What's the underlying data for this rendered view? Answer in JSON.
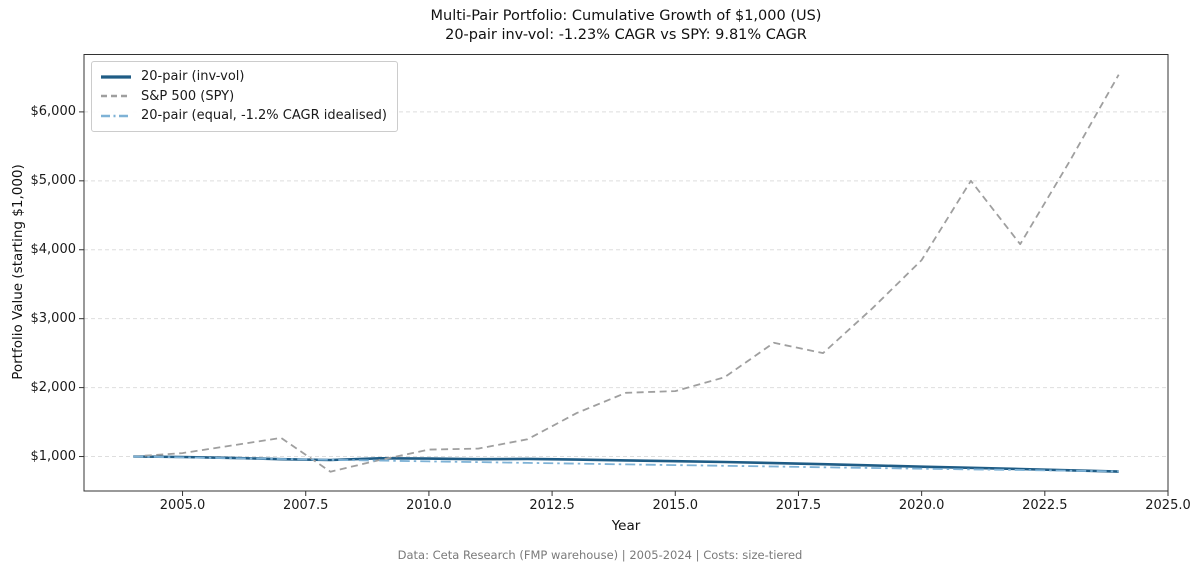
{
  "header": {
    "title_line1": "Multi-Pair Portfolio: Cumulative Growth of $1,000 (US)",
    "title_line2": "20-pair inv-vol: -1.23% CAGR vs SPY: 9.81% CAGR"
  },
  "footer": {
    "caption": "Data: Ceta Research (FMP warehouse) | 2005-2024 | Costs: size-tiered"
  },
  "colors": {
    "invvol_line": "#1f5c85",
    "spy_line": "#9f9f9f",
    "equal_line": "#7eb2d6",
    "gridline": "#dedede",
    "axis_frame": "#333333"
  },
  "chart_data": {
    "type": "line",
    "title": "Multi-Pair Portfolio: Cumulative Growth of $1,000 (US)",
    "subtitle": "20-pair inv-vol: -1.23% CAGR vs SPY: 9.81% CAGR",
    "xlabel": "Year",
    "ylabel": "Portfolio Value (starting $1,000)",
    "xlim": [
      2003,
      2025
    ],
    "ylim": [
      500,
      6840
    ],
    "grid": "horizontal dashed gridlines on",
    "legend_position": "upper-left",
    "xtick_values": [
      2005.0,
      2007.5,
      2010.0,
      2012.5,
      2015.0,
      2017.5,
      2020.0,
      2022.5,
      2025.0
    ],
    "xtick_labels": [
      "2005.0",
      "2007.5",
      "2010.0",
      "2012.5",
      "2015.0",
      "2017.5",
      "2020.0",
      "2022.5",
      "2025.0"
    ],
    "ytick_values": [
      1000,
      2000,
      3000,
      4000,
      5000,
      6000
    ],
    "ytick_labels": [
      "$1,000",
      "$2,000",
      "$3,000",
      "$4,000",
      "$5,000",
      "$6,000"
    ],
    "x": [
      2004,
      2005,
      2006,
      2007,
      2008,
      2009,
      2010,
      2011,
      2012,
      2013,
      2014,
      2015,
      2016,
      2017,
      2018,
      2019,
      2020,
      2021,
      2022,
      2023,
      2024
    ],
    "series": [
      {
        "name": "20-pair (inv-vol)",
        "color": "#1f5c85",
        "style": "solid",
        "width": 2.6,
        "values": [
          1000,
          993,
          980,
          962,
          950,
          975,
          970,
          962,
          966,
          955,
          944,
          933,
          921,
          905,
          889,
          871,
          853,
          836,
          819,
          800,
          781
        ]
      },
      {
        "name": "S&P 500 (SPY)",
        "color": "#9f9f9f",
        "style": "dashed",
        "width": 1.8,
        "values": [
          1000,
          1050,
          1160,
          1270,
          780,
          950,
          1100,
          1115,
          1250,
          1630,
          1925,
          1950,
          2150,
          2650,
          2500,
          3150,
          3850,
          5000,
          4080,
          5280,
          6540
        ]
      },
      {
        "name": "20-pair (equal, -1.2% CAGR idealised)",
        "color": "#7eb2d6",
        "style": "dashdot",
        "width": 1.8,
        "values": [
          1000,
          988,
          976,
          964,
          953,
          941,
          930,
          919,
          908,
          897,
          886,
          876,
          865,
          855,
          844,
          834,
          824,
          814,
          805,
          795,
          785
        ]
      }
    ]
  }
}
